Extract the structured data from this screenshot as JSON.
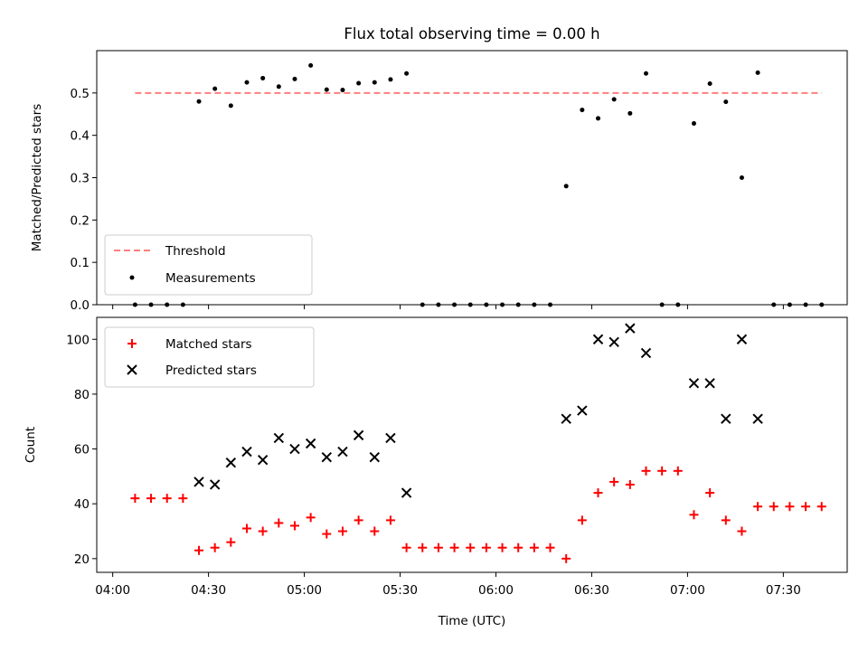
{
  "figure": {
    "title": "Flux total observing time = 0.00 h",
    "xlabel": "Time (UTC)"
  },
  "chart_data": [
    {
      "type": "scatter",
      "ylabel": "Matched/Predicted stars",
      "ylim": [
        0,
        0.6
      ],
      "yticks": [
        0.0,
        0.1,
        0.2,
        0.3,
        0.4,
        0.5
      ],
      "ytick_labels": [
        "0.0",
        "0.1",
        "0.2",
        "0.3",
        "0.4",
        "0.5"
      ],
      "xlim": [
        "03:55",
        "07:50"
      ],
      "xticks": [
        "04:00",
        "04:30",
        "05:00",
        "05:30",
        "06:00",
        "06:30",
        "07:00",
        "07:30"
      ],
      "grid": false,
      "legend": {
        "placement": "lower-left",
        "entries": [
          "Threshold",
          "Measurements"
        ]
      },
      "threshold": {
        "name": "Threshold",
        "value": 0.5,
        "x_range": [
          "04:07",
          "07:42"
        ],
        "color": "#ff7f7f",
        "style": "dashed"
      },
      "series": [
        {
          "name": "Measurements",
          "marker": "dot",
          "color": "#000000",
          "x": [
            "04:07",
            "04:12",
            "04:17",
            "04:22",
            "04:27",
            "04:32",
            "04:37",
            "04:42",
            "04:47",
            "04:52",
            "04:57",
            "05:02",
            "05:07",
            "05:12",
            "05:17",
            "05:22",
            "05:27",
            "05:32",
            "05:37",
            "05:42",
            "05:47",
            "05:52",
            "05:57",
            "06:02",
            "06:07",
            "06:12",
            "06:17",
            "06:22",
            "06:27",
            "06:32",
            "06:37",
            "06:42",
            "06:47",
            "06:52",
            "06:57",
            "07:02",
            "07:07",
            "07:12",
            "07:17",
            "07:22",
            "07:27",
            "07:32",
            "07:37",
            "07:42"
          ],
          "y": [
            0,
            0,
            0,
            0,
            0.48,
            0.51,
            0.47,
            0.525,
            0.535,
            0.515,
            0.533,
            0.565,
            0.508,
            0.507,
            0.523,
            0.525,
            0.532,
            0.546,
            0,
            0,
            0,
            0,
            0,
            0,
            0,
            0,
            0,
            0.28,
            0.46,
            0.44,
            0.485,
            0.452,
            0.546,
            0,
            0,
            0.428,
            0.522,
            0.479,
            0.3,
            0.548,
            0,
            0,
            0,
            0
          ]
        }
      ]
    },
    {
      "type": "scatter",
      "ylabel": "Count",
      "ylim": [
        15,
        108
      ],
      "yticks": [
        20,
        40,
        60,
        80,
        100
      ],
      "ytick_labels": [
        "20",
        "40",
        "60",
        "80",
        "100"
      ],
      "xlim": [
        "03:55",
        "07:50"
      ],
      "xticks": [
        "04:00",
        "04:30",
        "05:00",
        "05:30",
        "06:00",
        "06:30",
        "07:00",
        "07:30"
      ],
      "xtick_labels": [
        "04:00",
        "04:30",
        "05:00",
        "05:30",
        "06:00",
        "06:30",
        "07:00",
        "07:30"
      ],
      "grid": false,
      "legend": {
        "placement": "top-left",
        "entries": [
          "Matched stars",
          "Predicted stars"
        ]
      },
      "series": [
        {
          "name": "Matched stars",
          "marker": "plus",
          "color": "#ff0000",
          "x": [
            "04:07",
            "04:12",
            "04:17",
            "04:22",
            "04:27",
            "04:32",
            "04:37",
            "04:42",
            "04:47",
            "04:52",
            "04:57",
            "05:02",
            "05:07",
            "05:12",
            "05:17",
            "05:22",
            "05:27",
            "05:32",
            "05:37",
            "05:42",
            "05:47",
            "05:52",
            "05:57",
            "06:02",
            "06:07",
            "06:12",
            "06:17",
            "06:22",
            "06:27",
            "06:32",
            "06:37",
            "06:42",
            "06:47",
            "06:52",
            "06:57",
            "07:02",
            "07:07",
            "07:12",
            "07:17",
            "07:22",
            "07:27",
            "07:32",
            "07:37",
            "07:42"
          ],
          "y": [
            42,
            42,
            42,
            42,
            23,
            24,
            26,
            31,
            30,
            33,
            32,
            35,
            29,
            30,
            34,
            30,
            34,
            24,
            24,
            24,
            24,
            24,
            24,
            24,
            24,
            24,
            24,
            20,
            34,
            44,
            48,
            47,
            52,
            52,
            52,
            36,
            44,
            34,
            30,
            39,
            39,
            39,
            39,
            39
          ]
        },
        {
          "name": "Predicted stars",
          "marker": "x",
          "color": "#000000",
          "x": [
            "04:27",
            "04:32",
            "04:37",
            "04:42",
            "04:47",
            "04:52",
            "04:57",
            "05:02",
            "05:07",
            "05:12",
            "05:17",
            "05:22",
            "05:27",
            "05:32",
            "06:22",
            "06:27",
            "06:32",
            "06:37",
            "06:42",
            "06:47",
            "07:02",
            "07:07",
            "07:12",
            "07:17",
            "07:22"
          ],
          "y": [
            48,
            47,
            55,
            59,
            56,
            64,
            60,
            62,
            57,
            59,
            65,
            57,
            64,
            44,
            71,
            74,
            100,
            99,
            104,
            95,
            84,
            84,
            71,
            100,
            71
          ]
        }
      ]
    }
  ]
}
